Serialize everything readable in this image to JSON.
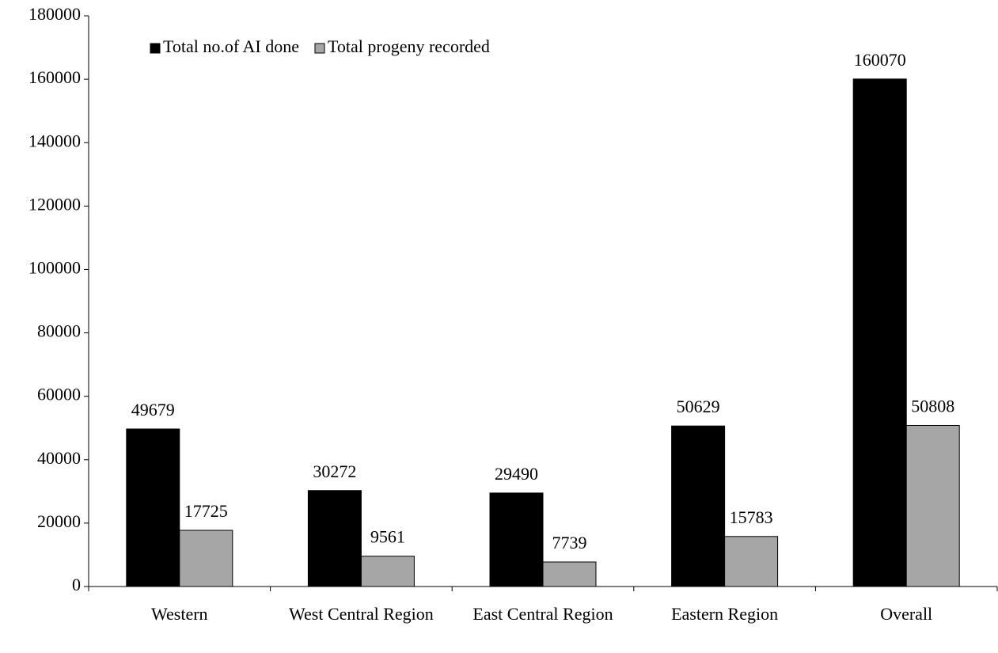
{
  "chart_data": {
    "type": "bar",
    "categories": [
      "Western",
      "West Central Region",
      "East Central Region",
      "Eastern Region",
      "Overall"
    ],
    "series": [
      {
        "name": "Total no.of AI done",
        "color": "#000000",
        "values": [
          49679,
          30272,
          29490,
          50629,
          160070
        ]
      },
      {
        "name": "Total progeny recorded",
        "color": "#a6a6a6",
        "values": [
          17725,
          9561,
          7739,
          15783,
          50808
        ]
      }
    ],
    "ylim": [
      0,
      180000
    ],
    "yticks": [
      0,
      20000,
      40000,
      60000,
      80000,
      100000,
      120000,
      140000,
      160000,
      180000
    ],
    "legend": "upper left",
    "grid": false
  }
}
